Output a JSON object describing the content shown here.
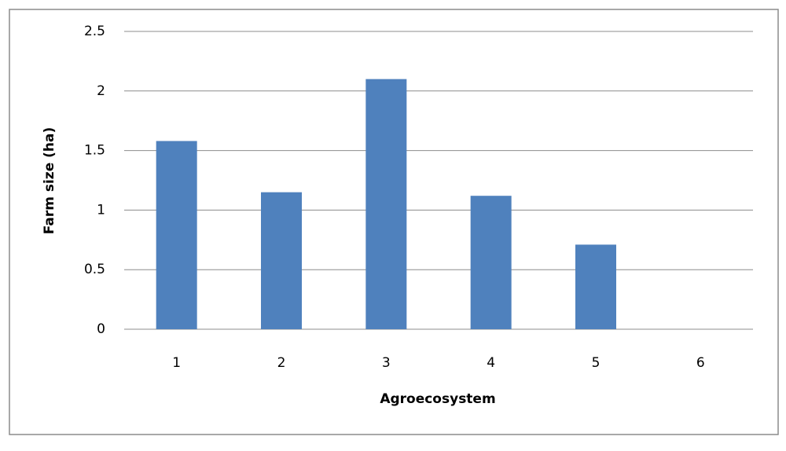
{
  "chart_data": {
    "type": "bar",
    "x_label": "Agroecosystem",
    "y_label": "Farm size (ha)",
    "categories": [
      "1",
      "2",
      "3",
      "4",
      "5",
      "6"
    ],
    "values": [
      1.58,
      1.15,
      2.1,
      1.12,
      0.71,
      0
    ],
    "color": "#4f81bd",
    "ylim": [
      0,
      2.5
    ],
    "yticks": [
      0,
      0.5,
      1,
      1.5,
      2,
      2.5
    ],
    "grid": true
  }
}
